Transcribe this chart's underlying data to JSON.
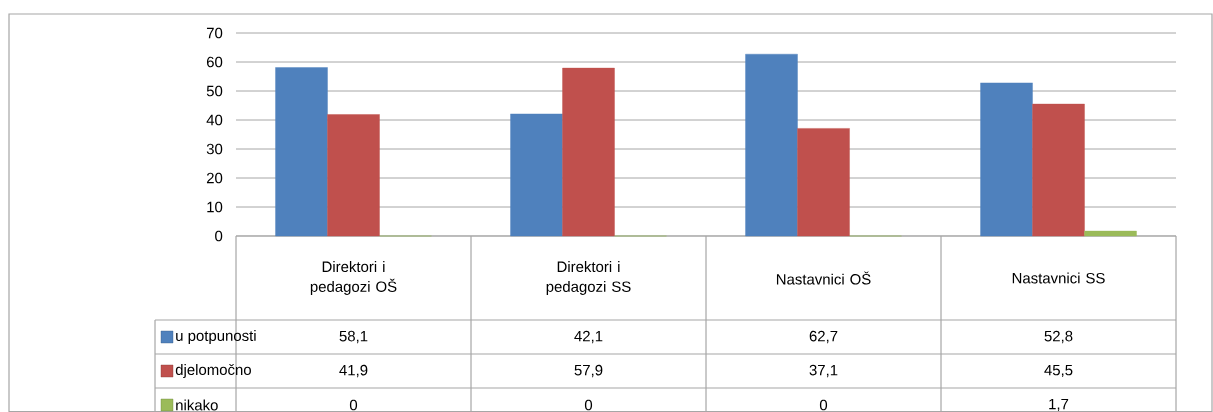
{
  "chart_data": {
    "type": "bar",
    "ylim": [
      0,
      70
    ],
    "yticks": [
      0,
      10,
      20,
      30,
      40,
      50,
      60,
      70
    ],
    "grid": "y",
    "legend": "bottom left",
    "categories": [
      "Direktori i pedagozi OŠ",
      "Direktori i pedagozi SS",
      "Nastavnici OŠ",
      "Nastavnici SS"
    ],
    "series": [
      {
        "name": "u potpunosti",
        "color": "#4f81bd",
        "values": [
          58.1,
          42.1,
          62.7,
          52.8
        ],
        "value_labels": [
          "58,1",
          "42,1",
          "62,7",
          "52,8"
        ]
      },
      {
        "name": "djelomočno",
        "color": "#c0504d",
        "values": [
          41.9,
          57.9,
          37.1,
          45.5
        ],
        "value_labels": [
          "41,9",
          "57,9",
          "37,1",
          "45,5"
        ]
      },
      {
        "name": "nikako",
        "color": "#9bbb59",
        "values": [
          0,
          0,
          0,
          1.7
        ],
        "value_labels": [
          "0",
          "0",
          "0",
          "1,7"
        ]
      }
    ]
  }
}
